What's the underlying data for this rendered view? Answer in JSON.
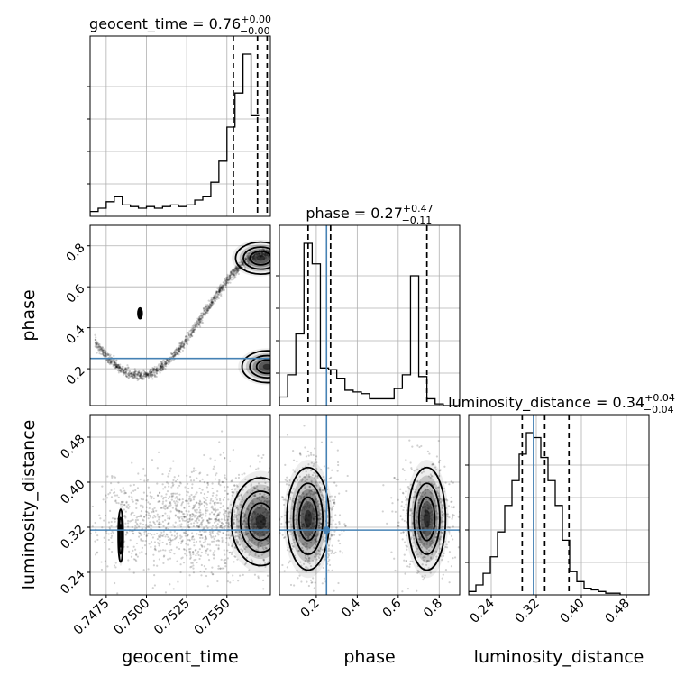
{
  "chart_data": {
    "type": "corner",
    "parameters": [
      {
        "name": "geocent_time",
        "range": [
          0.7465,
          0.7577
        ],
        "ticks": [
          0.7475,
          0.75,
          0.7525,
          0.755
        ],
        "tick_labels": [
          "0.7475",
          "0.7500",
          "0.7525",
          "0.7550"
        ],
        "title_main": "geocent_time = 0.76",
        "title_plus": "+0.00",
        "title_minus": "−0.00",
        "median": 0.7569,
        "q_low": 0.7554,
        "q_high": 0.7575,
        "hist_edges_start": 0.7465,
        "hist_bin_width": 0.0005,
        "hist_counts": [
          0.03,
          0.05,
          0.09,
          0.12,
          0.07,
          0.06,
          0.05,
          0.06,
          0.05,
          0.06,
          0.07,
          0.06,
          0.07,
          0.1,
          0.12,
          0.21,
          0.34,
          0.55,
          0.76,
          1.0,
          0.62
        ]
      },
      {
        "name": "phase",
        "range": [
          0.02,
          0.9
        ],
        "ticks": [
          0.2,
          0.4,
          0.6,
          0.8
        ],
        "tick_labels": [
          "0.2",
          "0.4",
          "0.6",
          "0.8"
        ],
        "title_main": "phase = 0.27",
        "title_plus": "+0.47",
        "title_minus": "−0.11",
        "median": 0.27,
        "q_low": 0.16,
        "q_high": 0.74,
        "truth": 0.25,
        "hist_edges_start": 0.02,
        "hist_bin_width": 0.04,
        "hist_counts": [
          0.05,
          0.18,
          0.42,
          0.95,
          0.83,
          0.22,
          0.21,
          0.16,
          0.09,
          0.08,
          0.07,
          0.04,
          0.04,
          0.04,
          0.1,
          0.18,
          0.76,
          0.17,
          0.04,
          0.01,
          0.0,
          0.0
        ]
      },
      {
        "name": "luminosity_distance",
        "range": [
          0.2,
          0.52
        ],
        "ticks": [
          0.24,
          0.32,
          0.4,
          0.48
        ],
        "tick_labels": [
          "0.24",
          "0.32",
          "0.40",
          "0.48"
        ],
        "title_main": "luminosity_distance = 0.34",
        "title_plus": "+0.04",
        "title_minus": "−0.04",
        "median": 0.335,
        "q_low": 0.295,
        "q_high": 0.378,
        "truth": 0.315,
        "hist_edges_start": 0.2,
        "hist_bin_width": 0.0128,
        "hist_counts": [
          0.02,
          0.06,
          0.13,
          0.23,
          0.38,
          0.54,
          0.69,
          0.85,
          0.98,
          0.95,
          0.83,
          0.69,
          0.54,
          0.33,
          0.14,
          0.08,
          0.04,
          0.03,
          0.02,
          0.01,
          0.01,
          0.0,
          0.0,
          0.0,
          0.0
        ]
      }
    ],
    "panels": [
      {
        "row": 1,
        "col": 0,
        "x_param": "geocent_time",
        "y_param": "phase",
        "density_peaks": [
          {
            "x": 0.7571,
            "y": 0.74,
            "sx": 0.0006,
            "sy": 0.03,
            "w": 1.0
          },
          {
            "x": 0.7575,
            "y": 0.21,
            "sx": 0.0006,
            "sy": 0.03,
            "w": 1.0
          },
          {
            "x": 0.7496,
            "y": 0.47,
            "sx": 0.0002,
            "sy": 0.01,
            "w": 0.25
          }
        ]
      },
      {
        "row": 2,
        "col": 0,
        "x_param": "geocent_time",
        "y_param": "luminosity_distance",
        "density_peaks": [
          {
            "x": 0.7571,
            "y": 0.33,
            "sx": 0.0007,
            "sy": 0.03,
            "w": 1.0
          },
          {
            "x": 0.7484,
            "y": 0.305,
            "sx": 0.0002,
            "sy": 0.018,
            "w": 0.3
          }
        ]
      },
      {
        "row": 2,
        "col": 1,
        "x_param": "phase",
        "y_param": "luminosity_distance",
        "density_peaks": [
          {
            "x": 0.16,
            "y": 0.335,
            "sx": 0.04,
            "sy": 0.035,
            "w": 1.0
          },
          {
            "x": 0.74,
            "y": 0.335,
            "sx": 0.035,
            "sy": 0.035,
            "w": 1.0
          }
        ]
      }
    ],
    "truth_color": "#4682b4",
    "grid": true
  }
}
